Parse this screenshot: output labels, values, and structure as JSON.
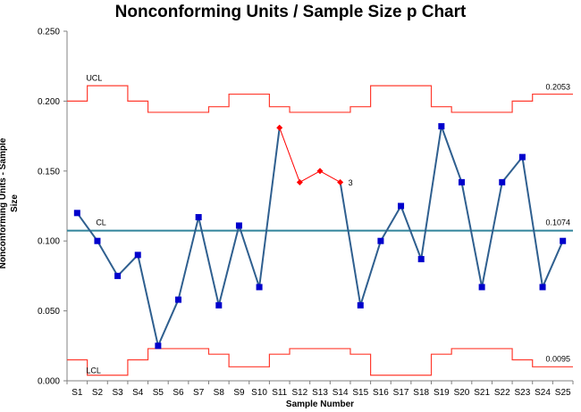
{
  "chart_data": {
    "type": "line",
    "title": "Nonconforming Units / Sample Size p Chart",
    "xlabel": "Sample Number",
    "ylabel": "Nonconforming Units - Sample Size",
    "ylim": [
      0,
      0.25
    ],
    "yticks": [
      "0.000",
      "0.050",
      "0.100",
      "0.150",
      "0.200",
      "0.250"
    ],
    "categories": [
      "S1",
      "S2",
      "S3",
      "S4",
      "S5",
      "S6",
      "S7",
      "S8",
      "S9",
      "S10",
      "S11",
      "S12",
      "S13",
      "S14",
      "S15",
      "S16",
      "S17",
      "S18",
      "S19",
      "S20",
      "S21",
      "S22",
      "S23",
      "S24",
      "S25"
    ],
    "series": [
      {
        "values": [
          0.12,
          0.1,
          0.075,
          0.09,
          0.025,
          0.058,
          0.117,
          0.054,
          0.111,
          0.067,
          0.181,
          0.142,
          0.15,
          0.142,
          0.054,
          0.1,
          0.125,
          0.087,
          0.182,
          0.142,
          0.067,
          0.142,
          0.16,
          0.067,
          0.1
        ],
        "color": "#2f5f8f",
        "marker_color": "#0000cc",
        "out_of_control_indices": [
          10,
          11,
          12,
          13
        ],
        "out_of_control_color": "#ff0000"
      }
    ],
    "center_line": {
      "label": "CL",
      "value": 0.1074,
      "value_label": "0.1074",
      "color": "#31849b"
    },
    "ucl": {
      "label": "UCL",
      "value_label": "0.2053",
      "color": "#ff3b2f",
      "values": [
        0.2,
        0.211,
        0.211,
        0.2,
        0.192,
        0.192,
        0.192,
        0.196,
        0.205,
        0.205,
        0.196,
        0.192,
        0.192,
        0.192,
        0.196,
        0.211,
        0.211,
        0.211,
        0.196,
        0.192,
        0.192,
        0.192,
        0.2,
        0.205,
        0.205
      ]
    },
    "lcl": {
      "label": "LCL",
      "value_label": "0.0095",
      "color": "#ff3b2f",
      "values": [
        0.015,
        0.004,
        0.004,
        0.015,
        0.023,
        0.023,
        0.023,
        0.019,
        0.01,
        0.01,
        0.019,
        0.023,
        0.023,
        0.023,
        0.019,
        0.004,
        0.004,
        0.004,
        0.019,
        0.023,
        0.023,
        0.023,
        0.015,
        0.01,
        0.01
      ]
    },
    "annotations": [
      {
        "index": 13,
        "text": "3"
      }
    ],
    "grid": false,
    "legend": "none"
  }
}
